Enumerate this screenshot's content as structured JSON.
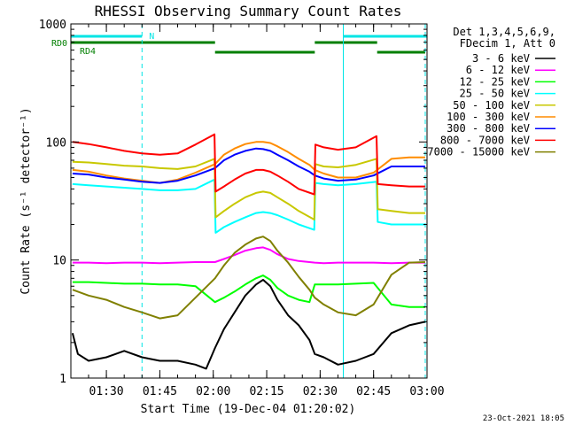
{
  "chart_data": {
    "type": "line",
    "title": "RHESSI Observing Summary Count Rates",
    "xlabel": "Start Time (19-Dec-04 01:20:02)",
    "ylabel": "Count Rate (s⁻¹ detector⁻¹)",
    "y_scale": "log",
    "ylim": [
      1,
      1000
    ],
    "y_tick_labels": [
      "1",
      "10",
      "100",
      "1000"
    ],
    "y_tick_values": [
      1,
      10,
      100,
      1000
    ],
    "x_time_window": [
      "01:20:02",
      "03:00:00"
    ],
    "x_tick_times": [
      "01:30",
      "01:45",
      "02:00",
      "02:15",
      "02:30",
      "02:45",
      "03:00"
    ],
    "x_tick_labels": [
      "01:30",
      "01:45",
      "02:00",
      "02:15",
      "02:30",
      "02:45",
      "03:00"
    ],
    "legend_header": [
      "Det 1,3,4,5,6,9,",
      "FDecim 1, Att 0"
    ],
    "legend_position": "right",
    "timestamp": "23-Oct-2021 18:05",
    "flags": [
      {
        "label": "N",
        "color": "#00e5e5",
        "segments": [
          [
            "01:20:02",
            "01:40:00"
          ],
          [
            "02:36:30",
            "03:00:00"
          ]
        ]
      },
      {
        "label": "RD0",
        "color": "#007f00",
        "segments": [
          [
            "01:20:02",
            "02:00:30"
          ],
          [
            "02:28:30",
            "02:46:00"
          ]
        ]
      },
      {
        "label": "RD4",
        "color": "#007f00",
        "segments": [
          [
            "02:00:30",
            "02:28:30"
          ],
          [
            "02:46:00",
            "02:59:30"
          ]
        ]
      }
    ],
    "dashed_markers": [
      "01:40:00",
      "02:59:30"
    ],
    "solid_markers": [
      "02:36:30"
    ],
    "series": [
      {
        "name": "3 - 6 keV",
        "color": "#000000",
        "t": [
          "01:20:30",
          "01:22:00",
          "01:25:00",
          "01:30:00",
          "01:35:00",
          "01:40:00",
          "01:45:00",
          "01:50:00",
          "01:55:00",
          "01:58:00",
          "02:00:30",
          "02:03:00",
          "02:06:00",
          "02:09:00",
          "02:12:00",
          "02:14:00",
          "02:16:00",
          "02:18:00",
          "02:21:00",
          "02:24:00",
          "02:27:00",
          "02:28:30",
          "02:31:00",
          "02:35:00",
          "02:40:00",
          "02:45:00",
          "02:50:00",
          "02:55:00",
          "02:59:30"
        ],
        "v": [
          2.4,
          1.6,
          1.4,
          1.5,
          1.7,
          1.5,
          1.4,
          1.4,
          1.3,
          1.2,
          1.8,
          2.6,
          3.6,
          5.0,
          6.2,
          6.8,
          6.0,
          4.6,
          3.4,
          2.8,
          2.1,
          1.6,
          1.5,
          1.3,
          1.4,
          1.6,
          2.4,
          2.8,
          3.0
        ]
      },
      {
        "name": "6 - 12 keV",
        "color": "#ff00ff",
        "t": [
          "01:20:30",
          "01:25:00",
          "01:30:00",
          "01:35:00",
          "01:40:00",
          "01:45:00",
          "01:50:00",
          "01:55:00",
          "02:00:30",
          "02:03:00",
          "02:06:00",
          "02:09:00",
          "02:12:00",
          "02:14:00",
          "02:16:00",
          "02:18:00",
          "02:21:00",
          "02:24:00",
          "02:27:00",
          "02:28:30",
          "02:31:00",
          "02:35:00",
          "02:40:00",
          "02:45:00",
          "02:50:00",
          "02:55:00",
          "02:59:30"
        ],
        "v": [
          9.5,
          9.5,
          9.4,
          9.5,
          9.5,
          9.4,
          9.5,
          9.6,
          9.6,
          10.2,
          11.0,
          12.0,
          12.6,
          12.8,
          12.2,
          11.2,
          10.2,
          9.8,
          9.6,
          9.5,
          9.4,
          9.5,
          9.5,
          9.5,
          9.4,
          9.5,
          9.5
        ]
      },
      {
        "name": "12 - 25 keV",
        "color": "#00ff00",
        "t": [
          "01:20:30",
          "01:25:00",
          "01:30:00",
          "01:35:00",
          "01:40:00",
          "01:45:00",
          "01:50:00",
          "01:55:00",
          "02:00:30",
          "02:03:00",
          "02:06:00",
          "02:09:00",
          "02:12:00",
          "02:14:00",
          "02:16:00",
          "02:18:00",
          "02:21:00",
          "02:24:00",
          "02:27:00",
          "02:28:30",
          "02:31:00",
          "02:35:00",
          "02:40:00",
          "02:45:00",
          "02:50:00",
          "02:55:00",
          "02:59:30"
        ],
        "v": [
          6.5,
          6.5,
          6.4,
          6.3,
          6.3,
          6.2,
          6.2,
          6.0,
          4.4,
          4.8,
          5.4,
          6.2,
          7.0,
          7.4,
          6.8,
          5.8,
          5.0,
          4.6,
          4.4,
          6.2,
          6.2,
          6.2,
          6.3,
          6.4,
          4.2,
          4.0,
          4.0
        ]
      },
      {
        "name": "25 - 50 keV",
        "color": "#00ffff",
        "t": [
          "01:20:30",
          "01:25:00",
          "01:30:00",
          "01:35:00",
          "01:40:00",
          "01:45:00",
          "01:50:00",
          "01:55:00",
          "02:00:20",
          "02:00:40",
          "02:03:00",
          "02:06:00",
          "02:09:00",
          "02:12:00",
          "02:14:00",
          "02:16:00",
          "02:18:00",
          "02:21:00",
          "02:24:00",
          "02:28:20",
          "02:28:40",
          "02:31:00",
          "02:35:00",
          "02:40:00",
          "02:45:50",
          "02:46:10",
          "02:50:00",
          "02:55:00",
          "02:59:30"
        ],
        "v": [
          44,
          43,
          42,
          41,
          40,
          39,
          39,
          40,
          48,
          17,
          19,
          21,
          23,
          25,
          25.5,
          25,
          24,
          22,
          20,
          18,
          45,
          44,
          43,
          44,
          46,
          21,
          20,
          20,
          20
        ]
      },
      {
        "name": "50 - 100 keV",
        "color": "#c8c800",
        "t": [
          "01:20:30",
          "01:25:00",
          "01:30:00",
          "01:35:00",
          "01:40:00",
          "01:45:00",
          "01:50:00",
          "01:55:00",
          "02:00:20",
          "02:00:40",
          "02:03:00",
          "02:06:00",
          "02:09:00",
          "02:12:00",
          "02:14:00",
          "02:16:00",
          "02:18:00",
          "02:21:00",
          "02:24:00",
          "02:28:20",
          "02:28:40",
          "02:31:00",
          "02:35:00",
          "02:40:00",
          "02:45:50",
          "02:46:10",
          "02:50:00",
          "02:55:00",
          "02:59:30"
        ],
        "v": [
          68,
          67,
          65,
          63,
          62,
          60,
          59,
          62,
          72,
          23,
          26,
          30,
          34,
          37,
          38,
          37,
          34,
          30,
          26,
          22,
          65,
          62,
          61,
          64,
          72,
          27,
          26,
          25,
          25
        ]
      },
      {
        "name": "100 - 300 keV",
        "color": "#ff8c00",
        "t": [
          "01:20:30",
          "01:25:00",
          "01:30:00",
          "01:35:00",
          "01:40:00",
          "01:45:00",
          "01:50:00",
          "01:55:00",
          "02:00:30",
          "02:03:00",
          "02:06:00",
          "02:09:00",
          "02:12:00",
          "02:14:00",
          "02:16:00",
          "02:18:00",
          "02:21:00",
          "02:24:00",
          "02:27:00",
          "02:28:30",
          "02:31:00",
          "02:35:00",
          "02:40:00",
          "02:45:00",
          "02:50:00",
          "02:55:00",
          "02:59:30"
        ],
        "v": [
          58,
          56,
          52,
          49,
          47,
          45,
          48,
          55,
          65,
          78,
          88,
          96,
          100,
          100,
          98,
          92,
          82,
          72,
          64,
          58,
          54,
          50,
          50,
          55,
          72,
          74,
          74
        ]
      },
      {
        "name": "300 - 800 keV",
        "color": "#0000ff",
        "t": [
          "01:20:30",
          "01:25:00",
          "01:30:00",
          "01:35:00",
          "01:40:00",
          "01:45:00",
          "01:50:00",
          "01:55:00",
          "02:00:30",
          "02:03:00",
          "02:06:00",
          "02:09:00",
          "02:12:00",
          "02:14:00",
          "02:16:00",
          "02:18:00",
          "02:21:00",
          "02:24:00",
          "02:27:00",
          "02:28:30",
          "02:31:00",
          "02:35:00",
          "02:40:00",
          "02:45:00",
          "02:50:00",
          "02:55:00",
          "02:59:30"
        ],
        "v": [
          54,
          53,
          50,
          48,
          46,
          45,
          47,
          52,
          60,
          70,
          78,
          84,
          88,
          87,
          84,
          78,
          70,
          62,
          56,
          52,
          49,
          47,
          48,
          52,
          62,
          62,
          62
        ]
      },
      {
        "name": "800 - 7000 keV",
        "color": "#ff0000",
        "t": [
          "01:20:30",
          "01:25:00",
          "01:30:00",
          "01:35:00",
          "01:40:00",
          "01:45:00",
          "01:50:00",
          "01:55:00",
          "02:00:20",
          "02:00:40",
          "02:03:00",
          "02:06:00",
          "02:09:00",
          "02:12:00",
          "02:14:00",
          "02:16:00",
          "02:18:00",
          "02:21:00",
          "02:24:00",
          "02:28:20",
          "02:28:40",
          "02:31:00",
          "02:35:00",
          "02:40:00",
          "02:45:50",
          "02:46:10",
          "02:50:00",
          "02:55:00",
          "02:59:30"
        ],
        "v": [
          100,
          96,
          90,
          84,
          80,
          78,
          80,
          95,
          116,
          38,
          42,
          48,
          54,
          58,
          58,
          56,
          52,
          46,
          40,
          36,
          95,
          90,
          86,
          90,
          112,
          44,
          43,
          42,
          42
        ]
      },
      {
        "name": "7000 - 15000 keV",
        "color": "#808000",
        "t": [
          "01:20:30",
          "01:25:00",
          "01:30:00",
          "01:35:00",
          "01:40:00",
          "01:45:00",
          "01:50:00",
          "01:55:00",
          "02:00:30",
          "02:03:00",
          "02:06:00",
          "02:09:00",
          "02:12:00",
          "02:14:00",
          "02:16:00",
          "02:18:00",
          "02:21:00",
          "02:24:00",
          "02:27:00",
          "02:28:30",
          "02:31:00",
          "02:35:00",
          "02:40:00",
          "02:45:00",
          "02:50:00",
          "02:55:00",
          "02:59:30"
        ],
        "v": [
          5.6,
          5.0,
          4.6,
          4.0,
          3.6,
          3.2,
          3.4,
          4.8,
          7.0,
          9.0,
          11.5,
          13.5,
          15.2,
          15.8,
          14.5,
          12.0,
          9.5,
          7.2,
          5.6,
          4.8,
          4.2,
          3.6,
          3.4,
          4.2,
          7.5,
          9.5,
          9.6
        ]
      }
    ]
  }
}
